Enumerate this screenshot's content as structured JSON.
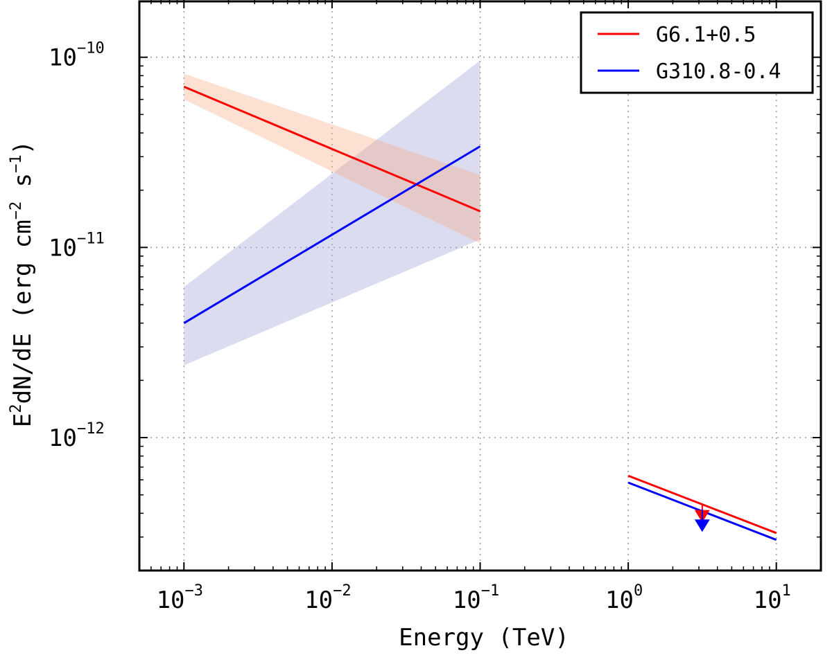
{
  "chart_data": {
    "type": "line",
    "xscale": "log",
    "yscale": "log",
    "xlim": [
      0.0005,
      20
    ],
    "ylim": [
      2e-13,
      2e-10
    ],
    "xlabel_text": "Energy (TeV)",
    "ylabel": {
      "base": "E",
      "exp": "2",
      "mid": "dN/dE (erg cm",
      "exp2": "−2",
      "mid2": " s",
      "exp3": "−1",
      "end": ")"
    },
    "grid": true,
    "legend_position": "upper-right",
    "x_ticks": [
      {
        "value": 0.001,
        "base": "10",
        "exp": "−3"
      },
      {
        "value": 0.01,
        "base": "10",
        "exp": "−2"
      },
      {
        "value": 0.1,
        "base": "10",
        "exp": "−1"
      },
      {
        "value": 1,
        "base": "10",
        "exp": "0"
      },
      {
        "value": 10,
        "base": "10",
        "exp": "1"
      }
    ],
    "y_ticks": [
      {
        "value": 1e-10,
        "base": "10",
        "exp": "−10"
      },
      {
        "value": 1e-11,
        "base": "10",
        "exp": "−11"
      },
      {
        "value": 1e-12,
        "base": "10",
        "exp": "−12"
      }
    ],
    "series": [
      {
        "name": "G6.1+0.5",
        "color": "#ff0000",
        "band_color": "#f5a57a",
        "line": {
          "x": [
            0.001,
            0.1
          ],
          "y": [
            7e-11,
            1.55e-11
          ]
        },
        "band": {
          "x": [
            0.001,
            0.1
          ],
          "lower": [
            6e-11,
            1.05e-11
          ],
          "upper": [
            8.2e-11,
            2.4e-11
          ]
        },
        "tev_line": {
          "x": [
            1,
            10
          ],
          "y": [
            6.3e-13,
            3.15e-13
          ]
        },
        "upper_limit": {
          "x": 3.16,
          "y": 4.5e-13,
          "arrow_to": 3.7e-13
        }
      },
      {
        "name": "G310.8-0.4",
        "color": "#0000ff",
        "band_color": "#9c9cd6",
        "line": {
          "x": [
            0.001,
            0.1
          ],
          "y": [
            4e-12,
            3.4e-11
          ]
        },
        "band": {
          "x": [
            0.001,
            0.1
          ],
          "lower": [
            2.4e-12,
            1.1e-11
          ],
          "upper": [
            6.2e-12,
            9.6e-11
          ]
        },
        "tev_line": {
          "x": [
            1,
            10
          ],
          "y": [
            5.8e-13,
            2.9e-13
          ]
        },
        "upper_limit": {
          "x": 3.16,
          "y": 4.2e-13,
          "arrow_to": 3.3e-13
        }
      }
    ]
  }
}
